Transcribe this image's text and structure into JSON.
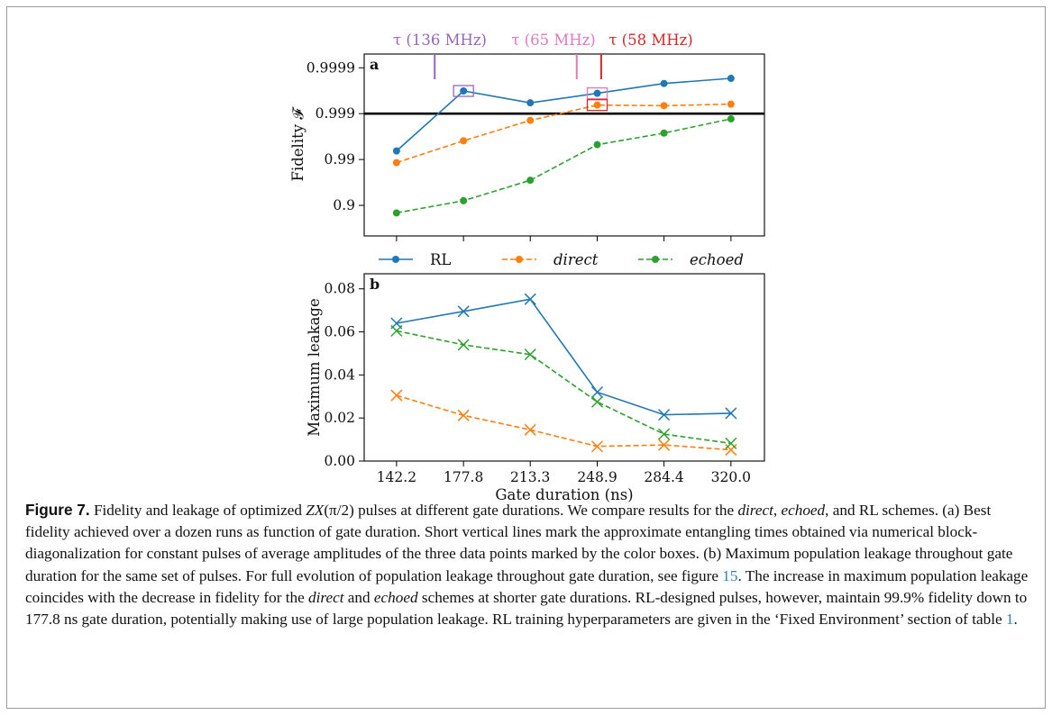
{
  "chart_data": [
    {
      "type": "line",
      "panel_label": "a",
      "ylabel": "Fidelity 𝓕",
      "xlabel": "",
      "x": [
        142.2,
        177.8,
        213.3,
        248.9,
        284.4,
        320.0
      ],
      "x_tick_labels": [
        "142.2",
        "177.8",
        "213.3",
        "248.9",
        "284.4",
        "320.0"
      ],
      "y_scale": "log-infidelity",
      "y_ticks": [
        0.9,
        0.99,
        0.999,
        0.9999
      ],
      "y_tick_labels": [
        "0.9",
        "0.99",
        "0.999",
        "0.9999"
      ],
      "ylim": [
        0.54,
        0.99995
      ],
      "threshold_line": 0.999,
      "series": [
        {
          "name": "RL",
          "color": "#1f77b4",
          "dash": "solid",
          "marker": "circle",
          "values": [
            0.9935,
            0.99968,
            0.99942,
            0.99964,
            0.99978,
            0.99983
          ]
        },
        {
          "name": "direct",
          "color": "#ff7f0e",
          "dash": "dashed",
          "marker": "circle",
          "values": [
            0.9883,
            0.9961,
            0.9986,
            0.99935,
            0.99933,
            0.99938
          ]
        },
        {
          "name": "echoed",
          "color": "#2ca02c",
          "dash": "dashed",
          "marker": "circle",
          "values": [
            0.854,
            0.921,
            0.9717,
            0.99525,
            0.99735,
            0.9987
          ]
        }
      ],
      "boxes": [
        {
          "series": "RL",
          "x": 177.8,
          "color": "#9467bd"
        },
        {
          "series": "RL",
          "x": 248.9,
          "color": "#e377c2"
        },
        {
          "series": "direct",
          "x": 248.9,
          "color": "#d62728"
        }
      ],
      "tau_markers": [
        {
          "label": "τ (136 MHz)",
          "color": "#9467bd",
          "x": 162.5
        },
        {
          "label": "τ (65 MHz)",
          "color": "#e377c2",
          "x": 238.0
        },
        {
          "label": "τ (58 MHz)",
          "color": "#d62728",
          "x": 251.0
        }
      ],
      "legend_placement": "below",
      "grid": false
    },
    {
      "type": "line",
      "panel_label": "b",
      "ylabel": "Maximum leakage",
      "xlabel": "Gate duration (ns)",
      "x": [
        142.2,
        177.8,
        213.3,
        248.9,
        284.4,
        320.0
      ],
      "x_tick_labels": [
        "142.2",
        "177.8",
        "213.3",
        "248.9",
        "284.4",
        "320.0"
      ],
      "y_ticks": [
        0.0,
        0.02,
        0.04,
        0.06,
        0.08
      ],
      "y_tick_labels": [
        "0.00",
        "0.02",
        "0.04",
        "0.06",
        "0.08"
      ],
      "ylim": [
        0.0,
        0.087
      ],
      "series": [
        {
          "name": "RL",
          "color": "#1f77b4",
          "dash": "solid",
          "marker": "x",
          "values": [
            0.064,
            0.0695,
            0.0752,
            0.032,
            0.0215,
            0.0222
          ]
        },
        {
          "name": "direct",
          "color": "#ff7f0e",
          "dash": "dashed",
          "marker": "x",
          "values": [
            0.0305,
            0.0212,
            0.0145,
            0.0068,
            0.0075,
            0.0052
          ]
        },
        {
          "name": "echoed",
          "color": "#2ca02c",
          "dash": "dashed",
          "marker": "x",
          "values": [
            0.0605,
            0.054,
            0.0495,
            0.0275,
            0.0125,
            0.0082
          ]
        }
      ],
      "grid": false
    }
  ],
  "legend": [
    {
      "label": "RL",
      "italic": false,
      "color": "#1f77b4",
      "dash": "solid"
    },
    {
      "label": "direct",
      "italic": true,
      "color": "#ff7f0e",
      "dash": "dashed"
    },
    {
      "label": "echoed",
      "italic": true,
      "color": "#2ca02c",
      "dash": "dashed"
    }
  ],
  "caption": {
    "label": "Figure 7.",
    "p1": " Fidelity and leakage of optimized ",
    "zx": "ZX",
    "p2": "(π/2) pulses at different gate durations. We compare results for the ",
    "direct": "direct",
    "p3": ", ",
    "echoed": "echoed",
    "p4": ", and RL schemes. (a) Best fidelity achieved over a dozen runs as function of gate duration. Short vertical lines mark the approximate entangling times obtained via numerical block-diagonalization for constant pulses of average amplitudes of the three data points marked by the color boxes. (b) Maximum population leakage throughout gate duration for the same set of pulses. For full evolution of population leakage throughout gate duration, see figure ",
    "ref1": "15",
    "p5": ". The increase in maximum population leakage coincides with the decrease in fidelity for the ",
    "direct2": "direct",
    "p6": " and ",
    "echoed2": "echoed",
    "p7": " schemes at shorter gate durations. RL-designed pulses, however, maintain 99.9% fidelity down to 177.8 ns gate duration, potentially making use of large population leakage. RL training hyperparameters are given in the ‘Fixed Environment’ section of table ",
    "ref2": "1",
    "p8": "."
  }
}
